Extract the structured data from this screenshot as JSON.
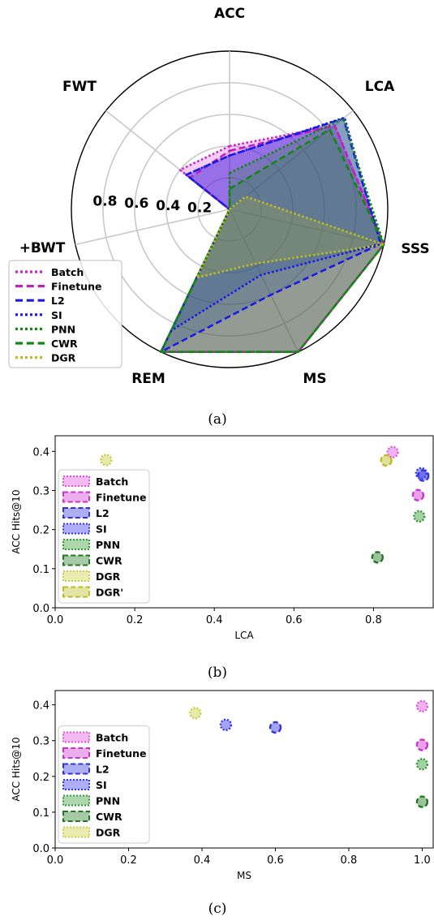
{
  "captions": [
    "(a)",
    "(b)",
    "(c)"
  ],
  "chart_data": [
    {
      "type": "radar",
      "axes": [
        "ACC",
        "LCA",
        "SSS",
        "MS",
        "REM",
        "+BWT",
        "FWT"
      ],
      "radial_ticks": [
        "0.2",
        "0.4",
        "0.6",
        "0.8"
      ],
      "rmax": 1.0,
      "legend_position": "bottom-left",
      "series": [
        {
          "name": "Batch",
          "values": [
            0.4,
            0.85,
            1.0,
            1.0,
            1.0,
            0.0,
            0.4
          ],
          "color": "#cc22cc",
          "dash": "dotted"
        },
        {
          "name": "Finetune",
          "values": [
            0.37,
            0.85,
            1.0,
            1.0,
            1.0,
            0.0,
            0.32
          ],
          "color": "#bb22bb",
          "dash": "dashed"
        },
        {
          "name": "L2",
          "values": [
            0.34,
            0.92,
            0.98,
            0.6,
            1.0,
            0.0,
            0.35
          ],
          "color": "#1a1ae6",
          "dash": "dashed"
        },
        {
          "name": "SI",
          "values": [
            0.34,
            0.93,
            0.98,
            0.46,
            0.85,
            0.0,
            0.35
          ],
          "color": "#1a1ae6",
          "dash": "dotted"
        },
        {
          "name": "PNN",
          "values": [
            0.23,
            0.92,
            1.0,
            1.0,
            1.0,
            0.0,
            0.0
          ],
          "color": "#118811",
          "dash": "dotted"
        },
        {
          "name": "CWR",
          "values": [
            0.13,
            0.81,
            1.0,
            1.0,
            1.0,
            0.0,
            0.0
          ],
          "color": "#118811",
          "dash": "dashed"
        },
        {
          "name": "DGR",
          "values": [
            0.0,
            0.13,
            1.0,
            0.38,
            0.48,
            0.0,
            0.0
          ],
          "color": "#bbbb22",
          "dash": "dotted"
        }
      ]
    },
    {
      "type": "scatter",
      "xlabel": "LCA",
      "ylabel": "ACC Hits@10",
      "xlim": [
        0.0,
        0.95
      ],
      "ylim": [
        0.0,
        0.44
      ],
      "xticks": [
        "0.0",
        "0.2",
        "0.4",
        "0.6",
        "0.8"
      ],
      "yticks": [
        "0.0",
        "0.1",
        "0.2",
        "0.3",
        "0.4"
      ],
      "legend_position": "bottom-left",
      "series": [
        {
          "name": "Batch",
          "x": 0.848,
          "y": 0.398,
          "color": "#dd55dd",
          "dash": "dotted"
        },
        {
          "name": "Finetune",
          "x": 0.912,
          "y": 0.288,
          "color": "#cc33cc",
          "dash": "dashed"
        },
        {
          "name": "L2",
          "x": 0.925,
          "y": 0.338,
          "color": "#3333dd",
          "dash": "dashed"
        },
        {
          "name": "SI",
          "x": 0.92,
          "y": 0.344,
          "color": "#3333ee",
          "dash": "dotted"
        },
        {
          "name": "PNN",
          "x": 0.915,
          "y": 0.234,
          "color": "#339933",
          "dash": "dotted"
        },
        {
          "name": "CWR",
          "x": 0.81,
          "y": 0.129,
          "color": "#227722",
          "dash": "dashed"
        },
        {
          "name": "DGR",
          "x": 0.128,
          "y": 0.378,
          "color": "#cccc44",
          "dash": "dotted"
        },
        {
          "name": "DGR'",
          "x": 0.832,
          "y": 0.377,
          "color": "#bbbb22",
          "dash": "dashed"
        }
      ]
    },
    {
      "type": "scatter",
      "xlabel": "MS",
      "ylabel": "ACC Hits@10",
      "xlim": [
        0.0,
        1.03
      ],
      "ylim": [
        0.0,
        0.44
      ],
      "xticks": [
        "0.0",
        "0.2",
        "0.4",
        "0.6",
        "0.8",
        "1.0"
      ],
      "yticks": [
        "0.0",
        "0.1",
        "0.2",
        "0.3",
        "0.4"
      ],
      "legend_position": "bottom-left",
      "series": [
        {
          "name": "Batch",
          "x": 1.0,
          "y": 0.396,
          "color": "#dd55dd",
          "dash": "dotted"
        },
        {
          "name": "Finetune",
          "x": 1.0,
          "y": 0.288,
          "color": "#cc33cc",
          "dash": "dashed"
        },
        {
          "name": "L2",
          "x": 0.6,
          "y": 0.337,
          "color": "#3333dd",
          "dash": "dashed"
        },
        {
          "name": "SI",
          "x": 0.465,
          "y": 0.344,
          "color": "#3333ee",
          "dash": "dotted"
        },
        {
          "name": "PNN",
          "x": 1.0,
          "y": 0.234,
          "color": "#339933",
          "dash": "dotted"
        },
        {
          "name": "CWR",
          "x": 1.0,
          "y": 0.129,
          "color": "#227722",
          "dash": "dashed"
        },
        {
          "name": "DGR",
          "x": 0.382,
          "y": 0.377,
          "color": "#cccc44",
          "dash": "dotted"
        }
      ]
    }
  ]
}
